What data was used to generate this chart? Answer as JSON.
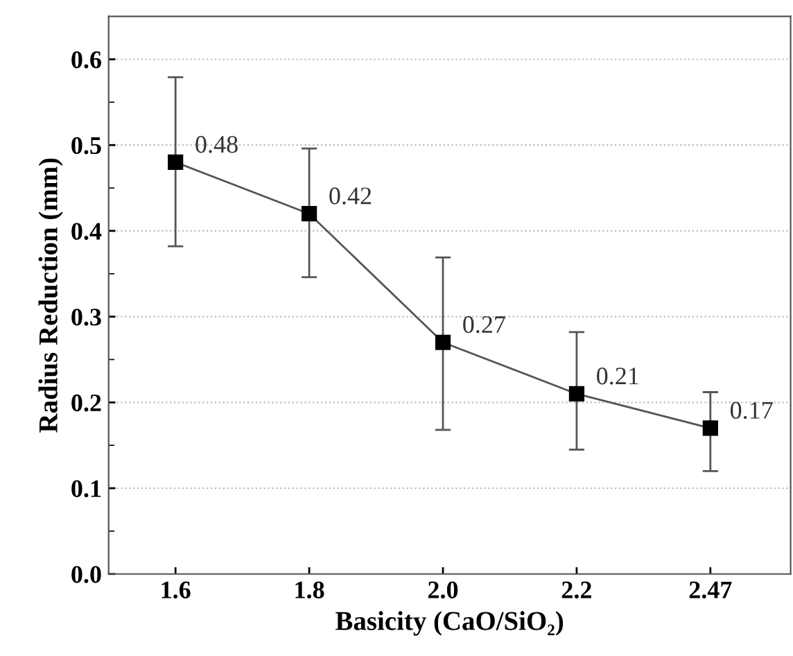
{
  "chart_data": {
    "type": "line",
    "xlabel": "Basicity (CaO/SiO₂)",
    "ylabel": "Radius Reduction (mm)",
    "categories": [
      "1.6",
      "1.8",
      "2.0",
      "2.2",
      "2.47"
    ],
    "series": [
      {
        "color": "#000000",
        "values": [
          0.48,
          0.42,
          0.27,
          0.21,
          0.17
        ],
        "errors": [
          [
            0.382,
            0.579
          ],
          [
            0.346,
            0.496
          ],
          [
            0.168,
            0.369
          ],
          [
            0.145,
            0.282
          ],
          [
            0.12,
            0.212
          ]
        ]
      }
    ],
    "data_labels": true,
    "marker": "square",
    "line_style": "solid",
    "grid": "y",
    "ylim": [
      0,
      0.65
    ],
    "yticks": [
      {
        "value": 0,
        "label": "0.0"
      },
      0.1,
      0.2,
      0.3,
      0.4,
      0.5,
      0.6
    ]
  }
}
